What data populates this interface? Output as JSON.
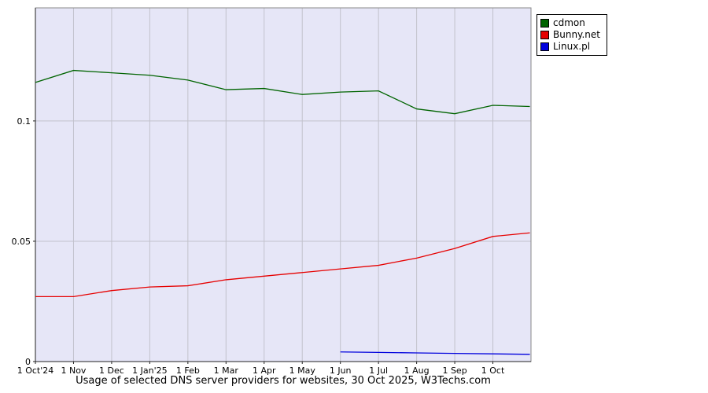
{
  "chart_data": {
    "type": "line",
    "title": "Usage of selected DNS server providers for websites, 30 Oct 2025, W3Techs.com",
    "xlabel": "",
    "ylabel": "",
    "ylim": [
      0,
      0.147
    ],
    "grid": true,
    "legend_position": "top-right-outside",
    "plot_bg": "#e6e6f7",
    "grid_color": "#c2c2cc",
    "axis_color": "#222222",
    "border_color": "#888888",
    "x_months_total": 13,
    "x_tick_labels": [
      "1 Oct'24",
      "1 Nov",
      "1 Dec",
      "1 Jan'25",
      "1 Feb",
      "1 Mar",
      "1 Apr",
      "1 May",
      "1 Jun",
      "1 Jul",
      "1 Aug",
      "1 Sep",
      "1 Oct"
    ],
    "y_ticks": [
      {
        "value": 0,
        "label": "0"
      },
      {
        "value": 0.05,
        "label": "0.05"
      },
      {
        "value": 0.1,
        "label": "0.1"
      }
    ],
    "x": [
      0,
      1,
      2,
      3,
      4,
      5,
      6,
      7,
      8,
      9,
      10,
      11,
      12,
      12.97
    ],
    "series": [
      {
        "name": "cdmon",
        "color": "#006400",
        "values": [
          0.116,
          0.121,
          0.12,
          0.119,
          0.117,
          0.113,
          0.1135,
          0.111,
          0.112,
          0.1125,
          0.105,
          0.103,
          0.1065,
          0.106
        ]
      },
      {
        "name": "Bunny.net",
        "color": "#e60000",
        "values": [
          0.027,
          0.027,
          0.0295,
          0.031,
          0.0315,
          0.034,
          0.0355,
          0.037,
          0.0385,
          0.04,
          0.043,
          0.047,
          0.052,
          0.0535
        ]
      },
      {
        "name": "Linux.pl",
        "color": "#0000dd",
        "values": [
          null,
          null,
          null,
          null,
          null,
          null,
          null,
          null,
          0.004,
          0.0038,
          0.0036,
          0.0034,
          0.0032,
          0.003
        ]
      }
    ]
  }
}
